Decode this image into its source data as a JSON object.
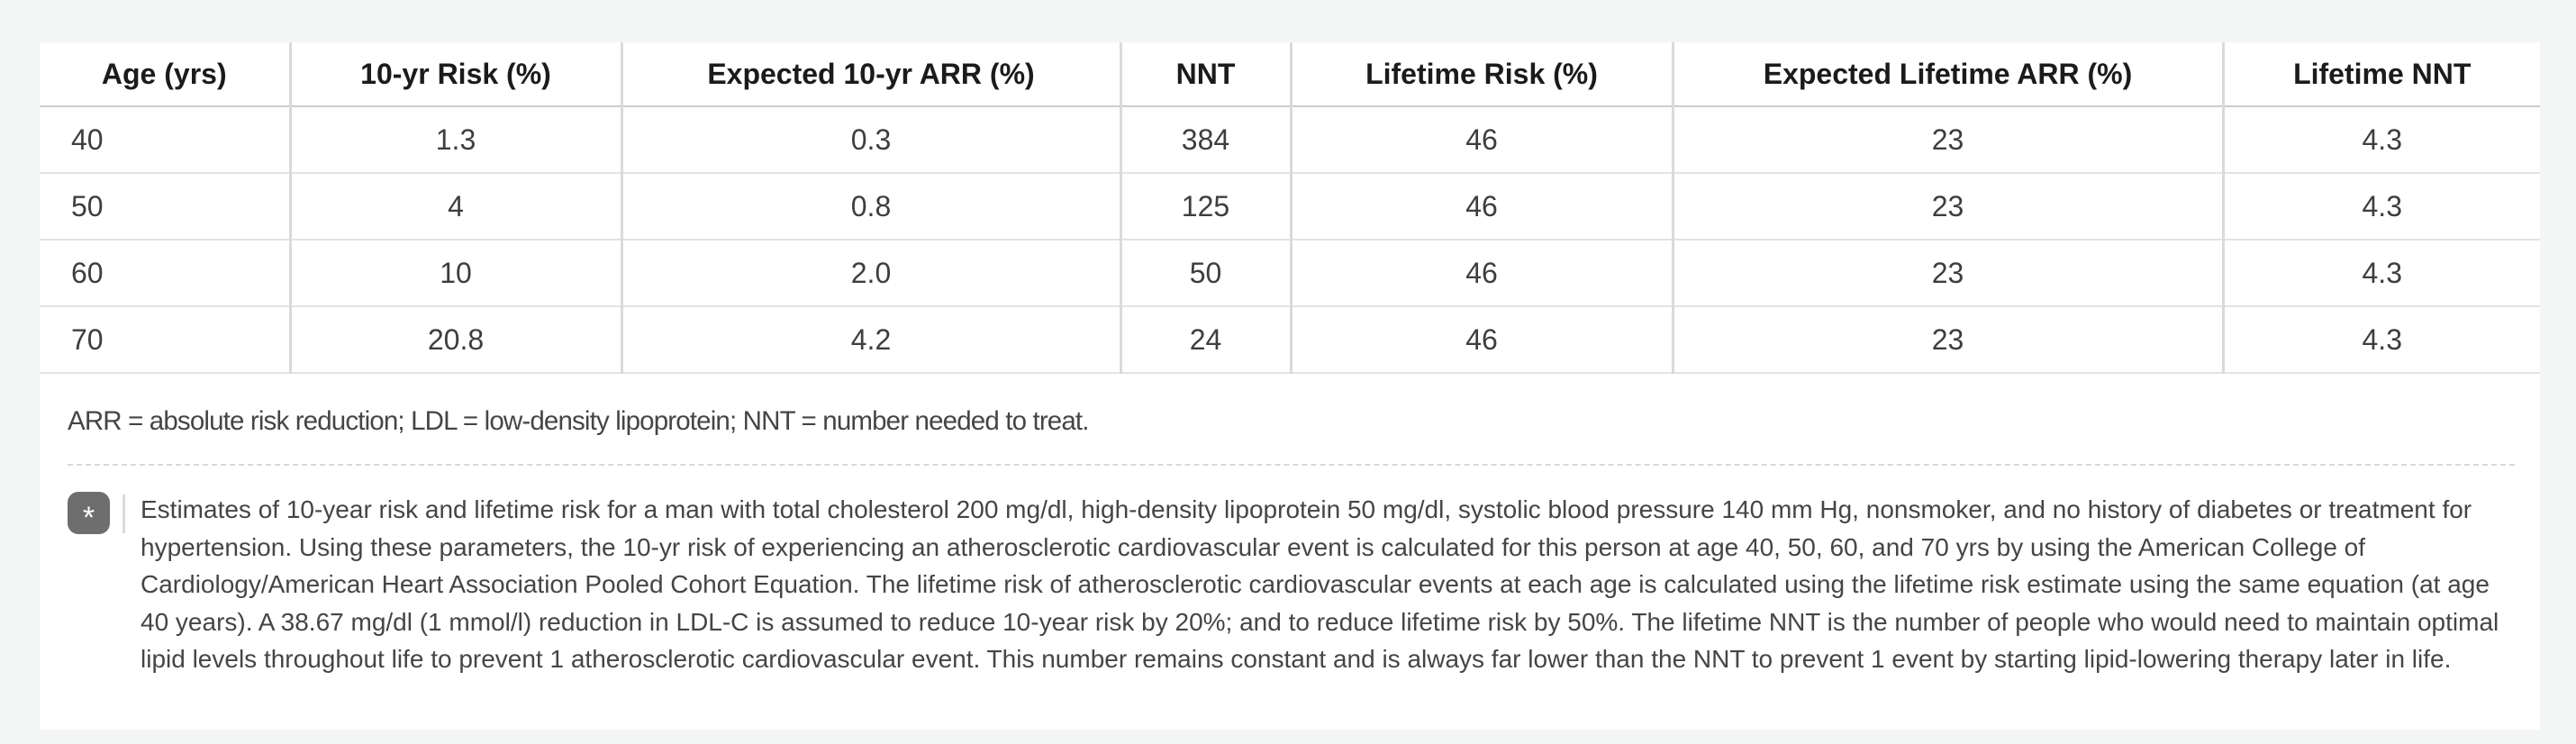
{
  "table": {
    "columns": [
      "Age (yrs)",
      "10-yr Risk (%)",
      "Expected 10-yr ARR (%)",
      "NNT",
      "Lifetime Risk (%)",
      "Expected Lifetime ARR (%)",
      "Lifetime NNT"
    ],
    "rows": [
      [
        "40",
        "1.3",
        "0.3",
        "384",
        "46",
        "23",
        "4.3"
      ],
      [
        "50",
        "4",
        "0.8",
        "125",
        "46",
        "23",
        "4.3"
      ],
      [
        "60",
        "10",
        "2.0",
        "50",
        "46",
        "23",
        "4.3"
      ],
      [
        "70",
        "20.8",
        "4.2",
        "24",
        "46",
        "23",
        "4.3"
      ]
    ]
  },
  "abbreviations_note": "ARR = absolute risk reduction; LDL = low-density lipoprotein; NNT = number needed to treat.",
  "footnote": {
    "marker": "*",
    "lines": [
      "Estimates of 10-year risk and lifetime risk for a man with total cholesterol 200 mg/dl, high-density lipoprotein 50 mg/dl, systolic blood pressure 140 mm Hg, nonsmoker, and no history of diabetes or treatment for",
      "hypertension. Using these parameters, the 10-yr risk of experiencing an atherosclerotic cardiovascular event is calculated for this person at age 40, 50, 60, and 70 yrs by using the American College of",
      "Cardiology/American Heart Association Pooled Cohort Equation. The lifetime risk of atherosclerotic cardiovascular events at each age is calculated using the lifetime risk estimate using the same equation (at age",
      "40 years). A 38.67 mg/dl (1 mmol/l) reduction in LDL-C is assumed to reduce 10-year risk by 20%; and to reduce lifetime risk by 50%. The lifetime NNT is the number of people who would need to maintain optimal",
      "lipid levels throughout life to prevent 1 atherosclerotic cardiovascular event. This number remains constant and is always far lower than the NNT to prevent 1 event by starting lipid-lowering therapy later in life."
    ]
  },
  "colors": {
    "page_background": "#f4f5f5",
    "panel_background": "#ffffff",
    "badge_background": "#6e6e6e",
    "header_text": "#1b1b1b",
    "body_text": "#3e3e3e"
  }
}
